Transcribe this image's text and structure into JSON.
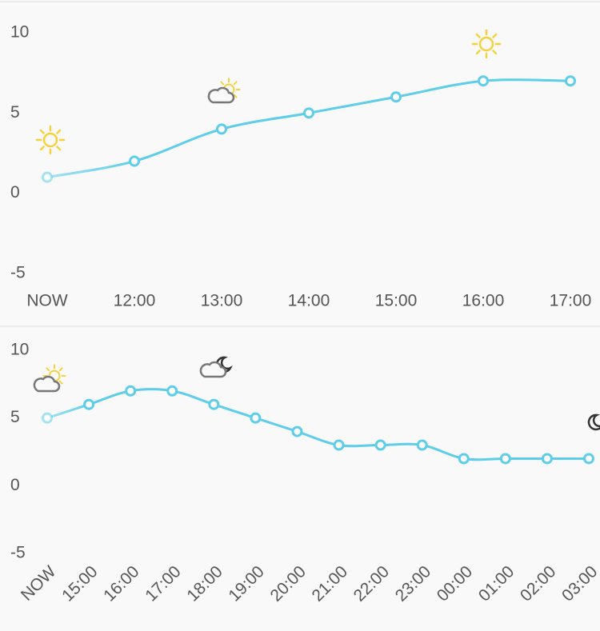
{
  "chart_data": [
    {
      "type": "line",
      "categories": [
        "NOW",
        "12:00",
        "13:00",
        "14:00",
        "15:00",
        "16:00",
        "17:00"
      ],
      "series": [
        {
          "color": "#5ecde9",
          "values": [
            1,
            2,
            4,
            5,
            6,
            7,
            7
          ]
        }
      ],
      "ylim": [
        -5,
        10
      ],
      "yticks": [
        -5,
        0,
        5,
        10
      ]
    },
    {
      "type": "line",
      "categories": [
        "NOW",
        "15:00",
        "16:00",
        "17:00",
        "18:00",
        "19:00",
        "20:00",
        "21:00",
        "22:00",
        "23:00",
        "00:00",
        "01:00",
        "02:00",
        "03:00"
      ],
      "series": [
        {
          "color": "#5ecde9",
          "values": [
            5,
            6,
            7,
            7,
            6,
            5,
            4,
            3,
            3,
            3,
            2,
            2,
            2,
            2
          ]
        }
      ],
      "ylim": [
        -5,
        10
      ],
      "yticks": [
        -5,
        0,
        5,
        10
      ]
    }
  ]
}
